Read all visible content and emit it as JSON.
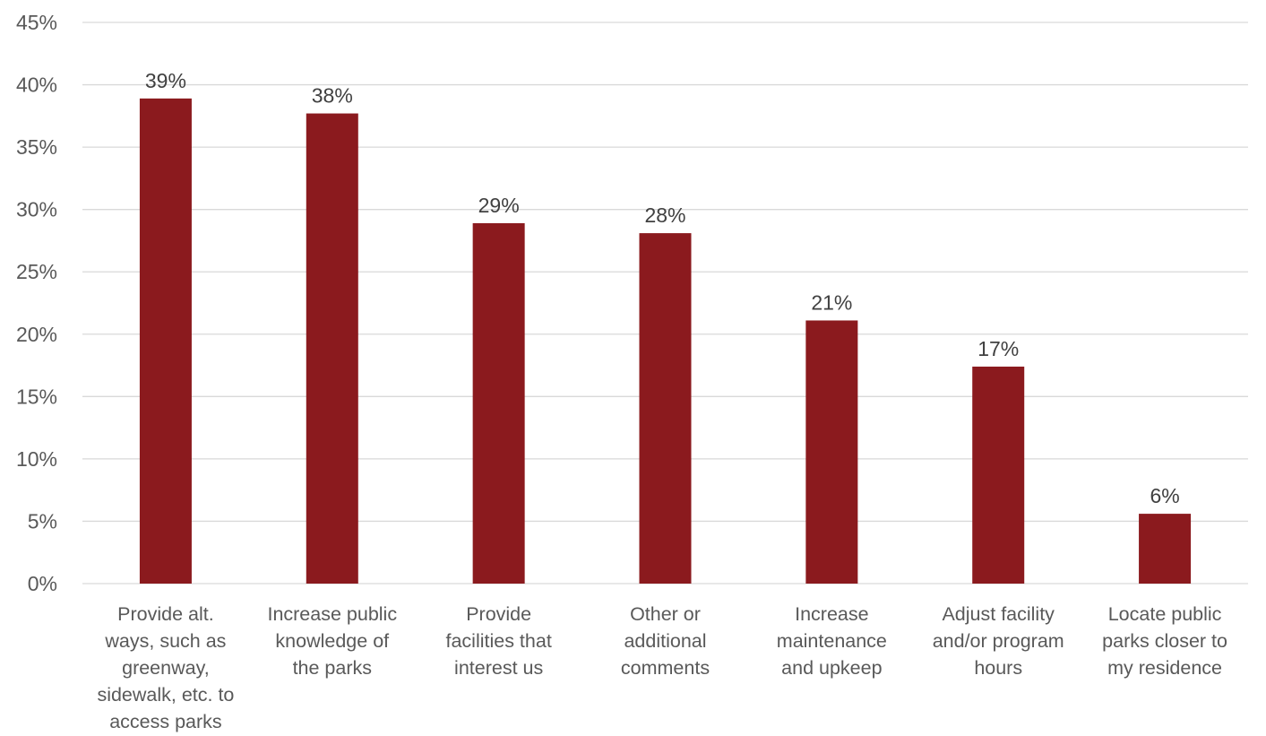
{
  "chart_data": {
    "type": "bar",
    "title": "",
    "xlabel": "",
    "ylabel": "",
    "categories": [
      [
        "Provide alt.",
        "ways, such as",
        "greenway,",
        "sidewalk, etc. to",
        "access parks"
      ],
      [
        "Increase public",
        "knowledge of",
        "the parks"
      ],
      [
        "Provide",
        "facilities that",
        "interest us"
      ],
      [
        "Other or",
        "additional",
        "comments"
      ],
      [
        "Increase",
        "maintenance",
        "and upkeep"
      ],
      [
        "Adjust facility",
        "and/or program",
        "hours"
      ],
      [
        "Locate public",
        "parks closer to",
        "my residence"
      ]
    ],
    "values": [
      38.9,
      37.7,
      28.9,
      28.1,
      21.1,
      17.4,
      5.6
    ],
    "data_labels": [
      "39%",
      "38%",
      "29%",
      "28%",
      "21%",
      "17%",
      "6%"
    ],
    "ylim": [
      0,
      45
    ],
    "y_ticks": [
      0,
      5,
      10,
      15,
      20,
      25,
      30,
      35,
      40,
      45
    ],
    "y_tick_labels": [
      "0%",
      "5%",
      "10%",
      "15%",
      "20%",
      "25%",
      "30%",
      "35%",
      "40%",
      "45%"
    ],
    "grid": true,
    "legend": "none",
    "bar_color": "#8B1A1E"
  }
}
